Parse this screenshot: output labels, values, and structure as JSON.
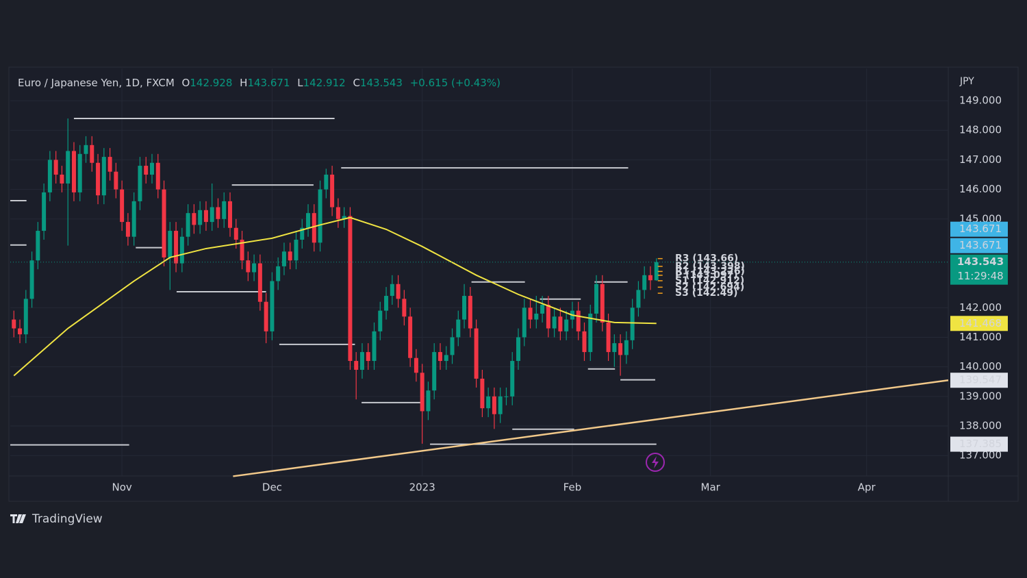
{
  "chart_data": {
    "type": "candlestick",
    "title": "Euro / Japanese Yen, 1D, FXCM",
    "ohlc_letters": [
      "O",
      "H",
      "L",
      "C"
    ],
    "change": "+0.615 (+0.43%)",
    "currency": "JPY",
    "countdown": "11:29:48",
    "brand": "TradingView",
    "up_color": "#089981",
    "down_color": "#f23645",
    "open": [
      141.6,
      141.3,
      141.1,
      142.3,
      143.6,
      144.6,
      145.9,
      147.0,
      146.5,
      146.2,
      147.3,
      145.9,
      147.2,
      147.5,
      146.9,
      145.8,
      147.1,
      146.6,
      146.0,
      144.9,
      144.4,
      145.6,
      146.8,
      146.5,
      146.9,
      146.0,
      143.7,
      144.6,
      143.5,
      144.4,
      145.2,
      144.8,
      145.3,
      144.9,
      145.4,
      145.0,
      145.6,
      144.7,
      144.3,
      143.6,
      143.2,
      143.5,
      142.2,
      141.2,
      142.9,
      143.4,
      143.9,
      143.6,
      144.3,
      144.7,
      145.2,
      144.2,
      146.0,
      146.5,
      145.4,
      145.0,
      145.1,
      140.2,
      139.9,
      140.5,
      140.2,
      141.2,
      141.9,
      142.4,
      142.8,
      142.3,
      141.7,
      140.3,
      139.8,
      138.5,
      139.2,
      140.5,
      140.2,
      140.4,
      141.0,
      141.6,
      142.4,
      141.3,
      139.6,
      138.6,
      139.0,
      138.4,
      139.0,
      139.0,
      140.2,
      141.0,
      142.0,
      141.6,
      141.8,
      142.1,
      141.3,
      141.7,
      141.2,
      141.6,
      141.9,
      141.2,
      140.5,
      141.8,
      142.8,
      141.5,
      140.5,
      140.8,
      140.4,
      140.9,
      142.0,
      142.6,
      143.1,
      142.928
    ],
    "high": [
      141.9,
      141.6,
      142.6,
      143.9,
      144.9,
      146.2,
      147.3,
      147.3,
      146.8,
      148.4,
      147.6,
      147.5,
      147.8,
      147.8,
      147.2,
      147.4,
      147.4,
      146.9,
      146.3,
      145.2,
      145.9,
      147.1,
      147.1,
      147.2,
      147.2,
      146.3,
      144.9,
      144.9,
      144.7,
      145.5,
      145.5,
      145.6,
      145.6,
      146.2,
      145.7,
      145.9,
      145.9,
      145.0,
      144.6,
      143.9,
      143.8,
      143.8,
      142.5,
      143.2,
      143.7,
      144.2,
      144.2,
      144.6,
      145.0,
      145.5,
      145.5,
      146.3,
      146.7,
      146.8,
      145.7,
      145.4,
      145.4,
      140.5,
      140.8,
      140.8,
      141.5,
      142.2,
      142.7,
      143.1,
      143.1,
      142.6,
      142.0,
      140.6,
      140.1,
      139.5,
      140.8,
      140.8,
      140.7,
      141.3,
      141.9,
      142.8,
      142.7,
      141.6,
      139.9,
      139.3,
      139.3,
      139.3,
      139.3,
      140.5,
      141.3,
      142.3,
      142.3,
      142.4,
      142.4,
      142.4,
      142.0,
      142.0,
      141.9,
      142.2,
      142.2,
      141.5,
      142.1,
      143.1,
      143.1,
      141.8,
      141.1,
      141.1,
      141.2,
      142.3,
      142.9,
      143.4,
      143.4,
      143.671
    ],
    "low": [
      141.0,
      140.8,
      140.8,
      142.0,
      143.3,
      144.3,
      145.6,
      146.2,
      145.9,
      144.1,
      145.6,
      145.6,
      146.9,
      146.6,
      145.5,
      145.5,
      146.3,
      145.7,
      144.6,
      144.1,
      144.1,
      145.3,
      146.2,
      146.2,
      145.7,
      143.4,
      142.6,
      143.2,
      143.2,
      144.1,
      144.5,
      144.5,
      144.6,
      144.6,
      144.7,
      144.7,
      144.4,
      144.0,
      143.3,
      142.9,
      142.9,
      141.9,
      140.8,
      140.9,
      142.6,
      143.1,
      143.3,
      143.3,
      144.0,
      144.4,
      143.9,
      143.9,
      145.7,
      145.1,
      144.7,
      144.7,
      139.9,
      138.9,
      139.6,
      139.9,
      139.9,
      140.9,
      141.6,
      142.1,
      142.0,
      141.4,
      140.0,
      139.5,
      137.4,
      138.2,
      138.9,
      139.9,
      139.9,
      140.1,
      140.7,
      141.3,
      141.0,
      139.3,
      138.3,
      138.3,
      137.9,
      138.1,
      138.7,
      138.7,
      139.9,
      140.7,
      141.3,
      141.3,
      141.5,
      141.0,
      141.0,
      140.9,
      140.9,
      141.3,
      140.9,
      140.2,
      140.2,
      141.5,
      141.2,
      140.2,
      140.0,
      139.7,
      140.1,
      140.6,
      141.7,
      142.3,
      142.6,
      142.912
    ],
    "close": [
      141.3,
      141.1,
      142.3,
      143.6,
      144.6,
      145.9,
      147.0,
      146.5,
      146.2,
      147.3,
      145.9,
      147.2,
      147.5,
      146.9,
      145.8,
      147.1,
      146.6,
      146.0,
      144.9,
      144.4,
      145.6,
      146.8,
      146.5,
      146.9,
      146.0,
      143.7,
      144.6,
      143.5,
      144.4,
      145.2,
      144.8,
      145.3,
      144.9,
      145.4,
      145.0,
      145.6,
      144.7,
      144.3,
      143.6,
      143.2,
      143.5,
      142.2,
      141.2,
      142.9,
      143.4,
      143.9,
      143.6,
      144.3,
      144.7,
      145.2,
      144.2,
      146.0,
      146.5,
      145.4,
      145.0,
      145.1,
      140.2,
      139.9,
      140.5,
      140.2,
      141.2,
      141.9,
      142.4,
      142.8,
      142.3,
      141.7,
      140.3,
      139.8,
      138.5,
      139.2,
      140.5,
      140.2,
      140.4,
      141.0,
      141.6,
      142.4,
      141.3,
      139.6,
      138.6,
      139.0,
      138.4,
      139.0,
      139.0,
      140.2,
      141.0,
      142.0,
      141.6,
      141.8,
      142.1,
      141.3,
      141.7,
      141.2,
      141.6,
      141.9,
      141.2,
      140.5,
      141.8,
      142.8,
      141.5,
      140.5,
      140.8,
      140.4,
      140.9,
      142.0,
      142.6,
      143.1,
      142.928,
      143.543
    ],
    "ma": {
      "color": "#f0e442",
      "x": [
        0,
        9,
        20,
        26,
        32,
        43,
        51,
        56,
        62,
        68,
        77,
        84,
        93,
        100,
        107
      ],
      "values": [
        139.7,
        141.3,
        142.9,
        143.7,
        144.0,
        144.35,
        144.8,
        145.05,
        144.65,
        144.07,
        143.1,
        142.45,
        141.75,
        141.5,
        141.468
      ]
    },
    "trendline": {
      "color": "#f2c98a",
      "x": [
        36.5,
        155.6
      ],
      "values": [
        136.3,
        139.547
      ]
    },
    "levels": [
      {
        "start": 10.0,
        "end": 53.4,
        "value": 148.4
      },
      {
        "start": 54.5,
        "end": 102.3,
        "value": 146.73
      },
      {
        "start": 36.3,
        "end": 49.9,
        "value": 146.15
      },
      {
        "start": -0.6,
        "end": 2.1,
        "value": 145.62
      },
      {
        "start": -0.6,
        "end": 2.1,
        "value": 144.12
      },
      {
        "start": 20.3,
        "end": 24.9,
        "value": 144.03
      },
      {
        "start": 27.1,
        "end": 42.0,
        "value": 142.54
      },
      {
        "start": 44.2,
        "end": 56.8,
        "value": 140.76
      },
      {
        "start": 57.9,
        "end": 68.0,
        "value": 138.79
      },
      {
        "start": 76.2,
        "end": 85.1,
        "value": 142.87
      },
      {
        "start": 87.6,
        "end": 94.4,
        "value": 142.29
      },
      {
        "start": 83.0,
        "end": 93.3,
        "value": 137.89
      },
      {
        "start": 95.6,
        "end": 100.1,
        "value": 139.93
      },
      {
        "start": 96.7,
        "end": 102.2,
        "value": 142.87
      },
      {
        "start": 101.0,
        "end": 106.8,
        "value": 139.56
      },
      {
        "start": -0.6,
        "end": 19.2,
        "value": 137.36
      },
      {
        "start": 69.3,
        "end": 107.0,
        "value": 137.385
      }
    ],
    "pivots": [
      {
        "label": "R3 (143.66)",
        "value": 143.66
      },
      {
        "label": "R2 (143.398)",
        "value": 143.398
      },
      {
        "label": "R1 (143.226)",
        "value": 143.226
      },
      {
        "label": "P (143.097)",
        "value": 143.097
      },
      {
        "label": "S1 (142.912)",
        "value": 142.912
      },
      {
        "label": "S2 (142.694)",
        "value": 142.694
      },
      {
        "label": "S3 (142.49)",
        "value": 142.49
      }
    ],
    "pivot_color": "#f7a21b",
    "xlim": [
      -0.6,
      155.6
    ],
    "ylim": [
      136.31,
      150.09
    ],
    "xticks": [
      {
        "value": 18,
        "label": "Nov"
      },
      {
        "value": 43,
        "label": "Dec"
      },
      {
        "value": 68,
        "label": "2023"
      },
      {
        "value": 93,
        "label": "Feb"
      },
      {
        "value": 116,
        "label": "Mar"
      },
      {
        "value": 142,
        "label": "Apr"
      }
    ],
    "yticks": [
      {
        "value": 137,
        "label": "137.000"
      },
      {
        "value": 138,
        "label": "138.000"
      },
      {
        "value": 139,
        "label": "139.000"
      },
      {
        "value": 140,
        "label": "140.000"
      },
      {
        "value": 141,
        "label": "141.000"
      },
      {
        "value": 142,
        "label": "142.000"
      },
      {
        "value": 145,
        "label": "145.000"
      },
      {
        "value": 146,
        "label": "146.000"
      },
      {
        "value": 147,
        "label": "147.000"
      },
      {
        "value": 148,
        "label": "148.000"
      },
      {
        "value": 149,
        "label": "149.000"
      }
    ],
    "grid": true
  }
}
